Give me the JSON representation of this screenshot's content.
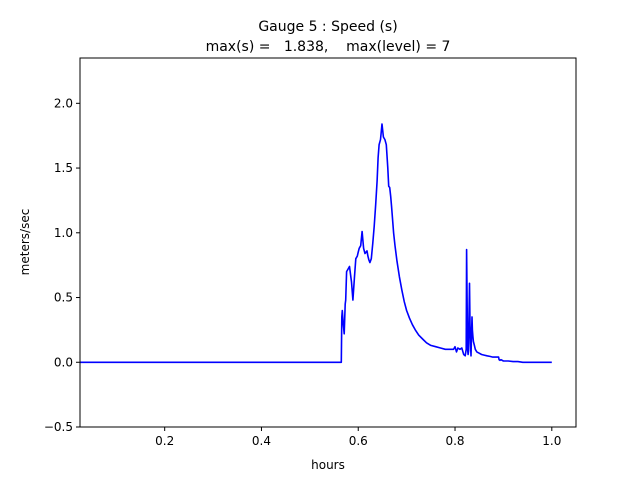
{
  "chart_data": {
    "type": "line",
    "title": "Gauge 5 : Speed (s)",
    "subtitle": "max(s) =   1.838,    max(level) = 7",
    "xlabel": "hours",
    "ylabel": "meters/sec",
    "xlim": [
      0.025,
      1.05
    ],
    "ylim": [
      -0.5,
      2.35
    ],
    "xticks": [
      "0.2",
      "0.4",
      "0.6",
      "0.8",
      "1.0"
    ],
    "yticks": [
      "−0.5",
      "0.0",
      "0.5",
      "1.0",
      "1.5",
      "2.0"
    ],
    "grid": false,
    "color": "#0000ff",
    "series": [
      {
        "x": [
          0.025,
          0.565,
          0.566,
          0.567,
          0.569,
          0.571,
          0.573,
          0.574,
          0.576,
          0.579,
          0.582,
          0.586,
          0.589,
          0.592,
          0.595,
          0.598,
          0.6,
          0.602,
          0.605,
          0.608,
          0.611,
          0.614,
          0.616,
          0.618,
          0.62,
          0.622,
          0.624,
          0.627,
          0.63,
          0.633,
          0.636,
          0.639,
          0.641,
          0.643,
          0.646,
          0.649,
          0.652,
          0.655,
          0.658,
          0.661,
          0.663,
          0.665,
          0.667,
          0.669,
          0.671,
          0.673,
          0.676,
          0.68,
          0.685,
          0.69,
          0.695,
          0.7,
          0.706,
          0.712,
          0.718,
          0.725,
          0.733,
          0.741,
          0.75,
          0.76,
          0.77,
          0.78,
          0.79,
          0.797,
          0.8,
          0.803,
          0.806,
          0.81,
          0.814,
          0.818,
          0.821,
          0.823,
          0.824,
          0.826,
          0.827,
          0.828,
          0.829,
          0.83,
          0.831,
          0.832,
          0.833,
          0.834,
          0.835,
          0.836,
          0.837,
          0.838,
          0.84,
          0.842,
          0.845,
          0.85,
          0.855,
          0.86,
          0.866,
          0.872,
          0.878,
          0.885,
          0.89,
          0.891,
          0.893,
          0.895,
          0.9,
          0.91,
          0.92,
          0.93,
          0.94,
          0.95,
          0.96,
          0.97,
          0.98,
          0.99,
          1.0
        ],
        "y": [
          0.0,
          0.0,
          0.35,
          0.4,
          0.3,
          0.22,
          0.45,
          0.48,
          0.7,
          0.72,
          0.74,
          0.62,
          0.48,
          0.65,
          0.8,
          0.82,
          0.85,
          0.88,
          0.9,
          1.01,
          0.88,
          0.84,
          0.85,
          0.86,
          0.82,
          0.79,
          0.77,
          0.8,
          0.92,
          1.05,
          1.22,
          1.4,
          1.58,
          1.68,
          1.72,
          1.84,
          1.74,
          1.72,
          1.68,
          1.5,
          1.36,
          1.35,
          1.28,
          1.2,
          1.1,
          1.0,
          0.9,
          0.78,
          0.66,
          0.56,
          0.47,
          0.4,
          0.34,
          0.29,
          0.25,
          0.21,
          0.18,
          0.15,
          0.13,
          0.12,
          0.11,
          0.1,
          0.1,
          0.1,
          0.12,
          0.08,
          0.11,
          0.1,
          0.11,
          0.06,
          0.05,
          0.1,
          0.87,
          0.1,
          0.06,
          0.09,
          0.4,
          0.61,
          0.3,
          0.15,
          0.05,
          0.2,
          0.35,
          0.25,
          0.2,
          0.16,
          0.13,
          0.1,
          0.08,
          0.07,
          0.06,
          0.055,
          0.05,
          0.045,
          0.04,
          0.04,
          0.04,
          0.02,
          0.015,
          0.02,
          0.01,
          0.01,
          0.005,
          0.005,
          0.0,
          0.0,
          0.0,
          0.0,
          0.0,
          0.0,
          0.0
        ]
      }
    ]
  }
}
